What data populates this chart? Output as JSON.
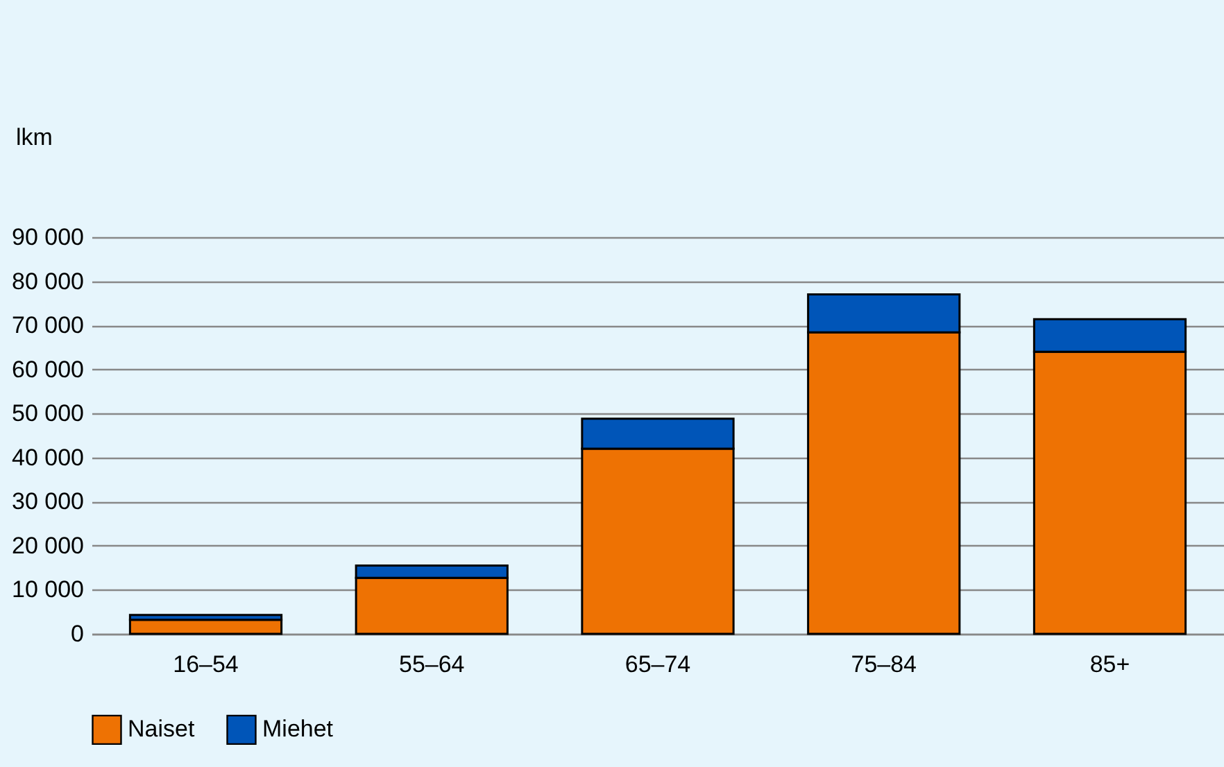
{
  "chart_data": {
    "type": "bar",
    "ylabel": "lkm",
    "stacked": true,
    "categories": [
      "16–54",
      "55–64",
      "65–74",
      "75–84",
      "85+"
    ],
    "series": [
      {
        "name": "Naiset",
        "color": "#ee7203",
        "values": [
          3200,
          12700,
          42000,
          68400,
          64000
        ]
      },
      {
        "name": "Miehet",
        "color": "#0055b8",
        "values": [
          1100,
          2800,
          6800,
          8600,
          7400
        ]
      }
    ],
    "ylim": [
      0,
      90000
    ],
    "yticks": [
      {
        "value": 0,
        "label": "0"
      },
      {
        "value": 10000,
        "label": "10 000"
      },
      {
        "value": 20000,
        "label": "20 000"
      },
      {
        "value": 30000,
        "label": "30 000"
      },
      {
        "value": 40000,
        "label": "40 000"
      },
      {
        "value": 50000,
        "label": "50 000"
      },
      {
        "value": 60000,
        "label": "60 000"
      },
      {
        "value": 70000,
        "label": "70 000"
      },
      {
        "value": 80000,
        "label": "80 000"
      },
      {
        "value": 90000,
        "label": "90 000"
      }
    ],
    "grid": "y",
    "legend": "bottom"
  }
}
